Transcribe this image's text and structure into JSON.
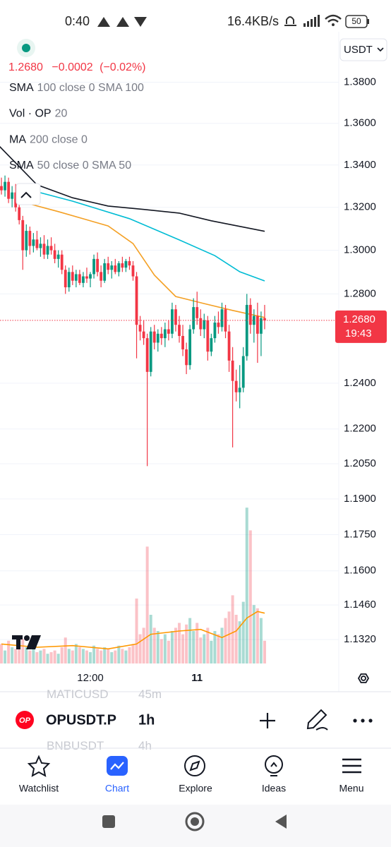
{
  "status_bar": {
    "time": "0:40",
    "network_speed": "16.4KB/s",
    "battery": "50"
  },
  "header": {
    "price": "1.2680",
    "change": "−0.0002",
    "change_percent": "(−0.02%)",
    "currency": "USDT"
  },
  "chart_data": {
    "type": "candlestick",
    "log_scale": true,
    "grid": true,
    "ylim": [
      1.121,
      1.405
    ],
    "yticks": [
      {
        "value": 1.38,
        "label": "1.3800"
      },
      {
        "value": 1.36,
        "label": "1.3600"
      },
      {
        "value": 1.34,
        "label": "1.3400"
      },
      {
        "value": 1.32,
        "label": "1.3200"
      },
      {
        "value": 1.3,
        "label": "1.3000"
      },
      {
        "value": 1.28,
        "label": "1.2800"
      },
      {
        "value": 1.24,
        "label": "1.2400"
      },
      {
        "value": 1.22,
        "label": "1.2200"
      },
      {
        "value": 1.205,
        "label": "1.2050"
      },
      {
        "value": 1.19,
        "label": "1.1900"
      },
      {
        "value": 1.175,
        "label": "1.1750"
      },
      {
        "value": 1.16,
        "label": "1.1600"
      },
      {
        "value": 1.146,
        "label": "1.1460"
      },
      {
        "value": 1.132,
        "label": "1.1320"
      }
    ],
    "xlim": [
      -0.4,
      94.84
    ],
    "xticks": [
      {
        "value": 25,
        "label": "12:00"
      },
      {
        "value": 55,
        "label": "11"
      }
    ],
    "up_color": "#089981",
    "down_color": "#f23645",
    "candles": [
      [
        1.33,
        1.334,
        1.326,
        1.328
      ],
      [
        1.328,
        1.335,
        1.325,
        1.332
      ],
      [
        1.332,
        1.334,
        1.322,
        1.324
      ],
      [
        1.324,
        1.33,
        1.32,
        1.327
      ],
      [
        1.327,
        1.331,
        1.318,
        1.32
      ],
      [
        1.32,
        1.324,
        1.312,
        1.314
      ],
      [
        1.314,
        1.316,
        1.291,
        1.3
      ],
      [
        1.3,
        1.312,
        1.297,
        1.309
      ],
      [
        1.309,
        1.311,
        1.298,
        1.302
      ],
      [
        1.302,
        1.308,
        1.299,
        1.305
      ],
      [
        1.305,
        1.309,
        1.3,
        1.301
      ],
      [
        1.301,
        1.306,
        1.297,
        1.303
      ],
      [
        1.303,
        1.307,
        1.296,
        1.298
      ],
      [
        1.298,
        1.305,
        1.296,
        1.302
      ],
      [
        1.302,
        1.306,
        1.298,
        1.3
      ],
      [
        1.3,
        1.303,
        1.294,
        1.296
      ],
      [
        1.296,
        1.3,
        1.292,
        1.298
      ],
      [
        1.298,
        1.3,
        1.289,
        1.291
      ],
      [
        1.291,
        1.293,
        1.28,
        1.283
      ],
      [
        1.283,
        1.292,
        1.281,
        1.29
      ],
      [
        1.29,
        1.293,
        1.284,
        1.286
      ],
      [
        1.286,
        1.291,
        1.283,
        1.289
      ],
      [
        1.289,
        1.291,
        1.284,
        1.285
      ],
      [
        1.285,
        1.29,
        1.283,
        1.288
      ],
      [
        1.288,
        1.292,
        1.285,
        1.287
      ],
      [
        1.287,
        1.29,
        1.283,
        1.289
      ],
      [
        1.289,
        1.298,
        1.287,
        1.296
      ],
      [
        1.296,
        1.299,
        1.288,
        1.29
      ],
      [
        1.29,
        1.293,
        1.283,
        1.286
      ],
      [
        1.286,
        1.296,
        1.285,
        1.294
      ],
      [
        1.294,
        1.297,
        1.289,
        1.291
      ],
      [
        1.291,
        1.295,
        1.287,
        1.293
      ],
      [
        1.293,
        1.296,
        1.289,
        1.29
      ],
      [
        1.29,
        1.295,
        1.288,
        1.294
      ],
      [
        1.294,
        1.297,
        1.29,
        1.292
      ],
      [
        1.292,
        1.296,
        1.29,
        1.295
      ],
      [
        1.295,
        1.297,
        1.291,
        1.293
      ],
      [
        1.293,
        1.295,
        1.286,
        1.288
      ],
      [
        1.288,
        1.29,
        1.251,
        1.266
      ],
      [
        1.266,
        1.27,
        1.259,
        1.263
      ],
      [
        1.263,
        1.268,
        1.257,
        1.26
      ],
      [
        1.26,
        1.262,
        1.204,
        1.245
      ],
      [
        1.245,
        1.265,
        1.243,
        1.263
      ],
      [
        1.263,
        1.266,
        1.255,
        1.258
      ],
      [
        1.258,
        1.264,
        1.254,
        1.262
      ],
      [
        1.262,
        1.265,
        1.257,
        1.26
      ],
      [
        1.26,
        1.267,
        1.256,
        1.264
      ],
      [
        1.264,
        1.268,
        1.259,
        1.262
      ],
      [
        1.262,
        1.276,
        1.26,
        1.273
      ],
      [
        1.273,
        1.275,
        1.263,
        1.266
      ],
      [
        1.266,
        1.27,
        1.258,
        1.261
      ],
      [
        1.261,
        1.266,
        1.252,
        1.255
      ],
      [
        1.255,
        1.258,
        1.244,
        1.248
      ],
      [
        1.248,
        1.266,
        1.246,
        1.264
      ],
      [
        1.264,
        1.278,
        1.262,
        1.274
      ],
      [
        1.274,
        1.281,
        1.266,
        1.269
      ],
      [
        1.269,
        1.273,
        1.261,
        1.264
      ],
      [
        1.264,
        1.271,
        1.26,
        1.268
      ],
      [
        1.268,
        1.27,
        1.25,
        1.254
      ],
      [
        1.254,
        1.262,
        1.252,
        1.26
      ],
      [
        1.26,
        1.27,
        1.258,
        1.267
      ],
      [
        1.267,
        1.272,
        1.262,
        1.265
      ],
      [
        1.265,
        1.276,
        1.263,
        1.273
      ],
      [
        1.273,
        1.275,
        1.26,
        1.263
      ],
      [
        1.263,
        1.266,
        1.245,
        1.25
      ],
      [
        1.25,
        1.256,
        1.212,
        1.241
      ],
      [
        1.241,
        1.246,
        1.232,
        1.236
      ],
      [
        1.236,
        1.248,
        1.229,
        1.238
      ],
      [
        1.238,
        1.256,
        1.236,
        1.252
      ],
      [
        1.252,
        1.28,
        1.25,
        1.275
      ],
      [
        1.275,
        1.278,
        1.262,
        1.266
      ],
      [
        1.266,
        1.273,
        1.258,
        1.27
      ],
      [
        1.27,
        1.276,
        1.249,
        1.262
      ],
      [
        1.262,
        1.272,
        1.252,
        1.269
      ],
      [
        1.269,
        1.275,
        1.264,
        1.268
      ]
    ],
    "last_price": {
      "value": 1.268,
      "label": "1.2680"
    },
    "countdown": "19:43",
    "volume_lim": [
      0,
      100
    ],
    "series": [
      {
        "name": "SMA",
        "inputs": "100 close 0 SMA 100",
        "color": "#00bcd4",
        "x": [
          5,
          20,
          36,
          50,
          60,
          67,
          74
        ],
        "values": [
          1.3295,
          1.3229,
          1.3147,
          1.3048,
          1.2975,
          1.2901,
          1.2859
        ]
      },
      {
        "name": "Vol · OP",
        "inputs": "20",
        "pane": "volume",
        "color": "#ff9800",
        "x": [
          0,
          10,
          20,
          30,
          38,
          42,
          50,
          56,
          62,
          66,
          69,
          72,
          74
        ],
        "values": [
          12,
          10,
          11,
          9,
          12,
          18,
          20,
          21,
          16,
          20,
          28,
          32,
          31
        ],
        "bars": [
          12,
          8,
          14,
          10,
          9,
          16,
          15,
          10,
          8,
          9,
          7,
          8,
          9,
          6,
          7,
          8,
          6,
          10,
          16,
          9,
          8,
          12,
          10,
          9,
          8,
          7,
          11,
          9,
          8,
          10,
          9,
          7,
          8,
          11,
          9,
          8,
          10,
          12,
          40,
          18,
          22,
          72,
          30,
          22,
          20,
          15,
          18,
          14,
          20,
          22,
          25,
          18,
          24,
          28,
          20,
          25,
          16,
          18,
          22,
          14,
          20,
          18,
          22,
          28,
          32,
          42,
          30,
          26,
          38,
          96,
          82,
          36,
          34,
          28,
          14
        ]
      },
      {
        "name": "MA",
        "inputs": "200 close 0",
        "color": "#131722",
        "x": [
          -1,
          10,
          20,
          30,
          40,
          50,
          59,
          74
        ],
        "values": [
          1.3497,
          1.3306,
          1.3245,
          1.3206,
          1.319,
          1.3173,
          1.3137,
          1.3088
        ]
      },
      {
        "name": "SMA",
        "inputs": "50 close 0 SMA 50",
        "color": "#f4a024",
        "x": [
          5,
          16,
          30,
          37,
          43,
          49,
          57,
          65,
          74
        ],
        "values": [
          1.3229,
          1.318,
          1.3113,
          1.3031,
          1.2886,
          1.2788,
          1.2756,
          1.2725,
          1.2693
        ]
      }
    ]
  },
  "symbol_bar": {
    "logo": "OP",
    "symbol": "OPUSDT.P",
    "interval": "1h",
    "behind_above": [
      "MATICUSD",
      "45m"
    ],
    "behind_below": [
      "BNBUSDT",
      "4h"
    ]
  },
  "nav": [
    "Watchlist",
    "Chart",
    "Explore",
    "Ideas",
    "Menu"
  ]
}
